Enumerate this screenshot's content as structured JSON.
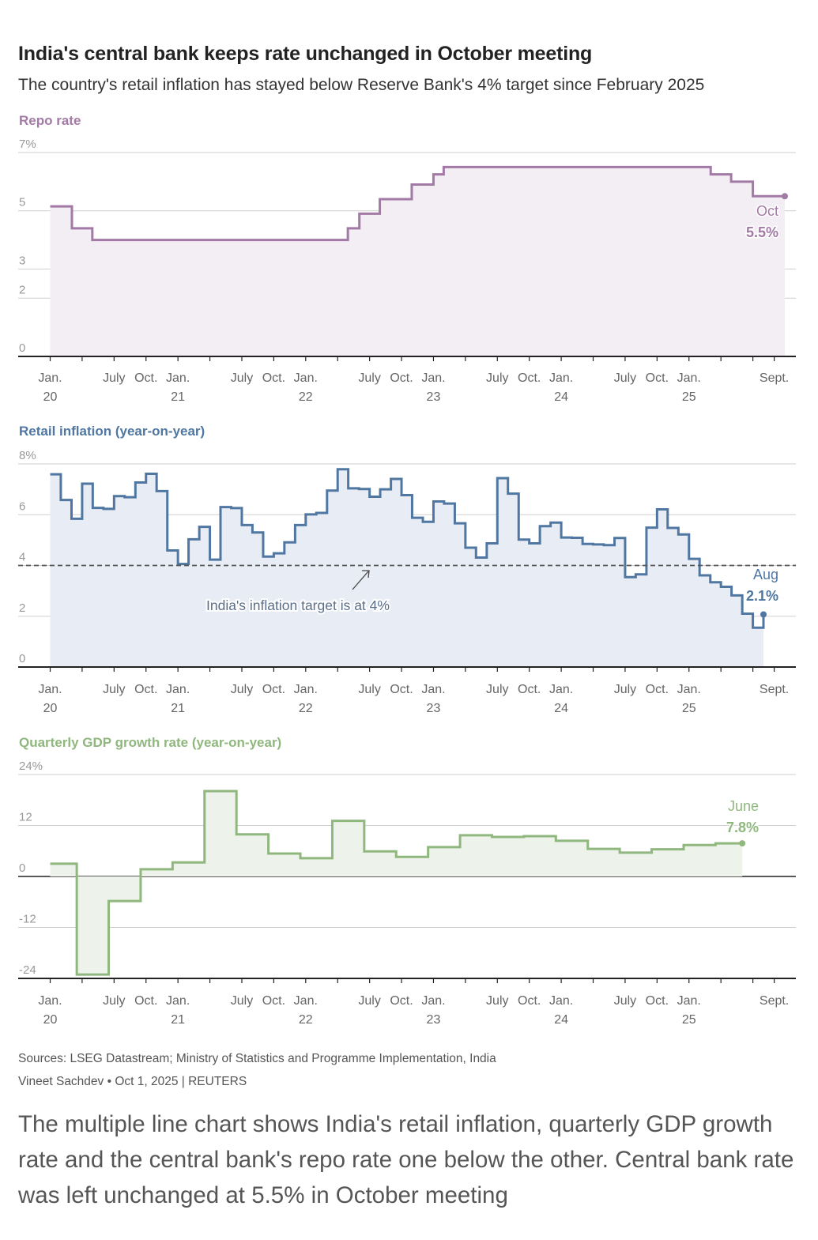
{
  "title": "India's central bank keeps rate unchanged in October meeting",
  "subtitle": "The country's retail inflation has stayed below Reserve Bank's 4% target since February 2025",
  "sources": "Sources: LSEG Datastream; Ministry of Statistics and Programme Implementation, India",
  "byline": "Vineet Sachdev • Oct 1, 2025 | REUTERS",
  "caption": "The multiple line chart shows India's retail inflation, quarterly GDP growth rate and the central bank's repo rate one below the other. Central bank rate was left unchanged at 5.5% in October meeting",
  "x_axis": {
    "ticks": [
      {
        "t": 2020.0,
        "label": "Jan.",
        "year": "20"
      },
      {
        "t": 2020.5,
        "label": "July",
        "year": ""
      },
      {
        "t": 2020.75,
        "label": "Oct.",
        "year": ""
      },
      {
        "t": 2021.0,
        "label": "Jan.",
        "year": "21"
      },
      {
        "t": 2021.5,
        "label": "July",
        "year": ""
      },
      {
        "t": 2021.75,
        "label": "Oct.",
        "year": ""
      },
      {
        "t": 2022.0,
        "label": "Jan.",
        "year": "22"
      },
      {
        "t": 2022.5,
        "label": "July",
        "year": ""
      },
      {
        "t": 2022.75,
        "label": "Oct.",
        "year": ""
      },
      {
        "t": 2023.0,
        "label": "Jan.",
        "year": "23"
      },
      {
        "t": 2023.5,
        "label": "July",
        "year": ""
      },
      {
        "t": 2023.75,
        "label": "Oct.",
        "year": ""
      },
      {
        "t": 2024.0,
        "label": "Jan.",
        "year": "24"
      },
      {
        "t": 2024.5,
        "label": "July",
        "year": ""
      },
      {
        "t": 2024.75,
        "label": "Oct.",
        "year": ""
      },
      {
        "t": 2025.0,
        "label": "Jan.",
        "year": "25"
      },
      {
        "t": 2025.667,
        "label": "Sept.",
        "year": ""
      }
    ],
    "minor_ticks": [
      2020.25,
      2021.25,
      2022.25,
      2023.25,
      2024.25,
      2025.25,
      2025.5
    ]
  },
  "chart_data": [
    {
      "type": "line",
      "style": "step-area",
      "title": "Repo rate",
      "color": "#a27aa5",
      "fill": "#f3edf4",
      "ylim": [
        0,
        7
      ],
      "y_ticks": [
        {
          "v": 7,
          "label": "7%"
        },
        {
          "v": 5,
          "label": "5"
        },
        {
          "v": 3,
          "label": "3"
        },
        {
          "v": 2,
          "label": "2"
        },
        {
          "v": 0,
          "label": "0"
        }
      ],
      "x_end": 2025.75,
      "points": [
        [
          2020.0,
          5.15
        ],
        [
          2020.17,
          4.4
        ],
        [
          2020.33,
          4.0
        ],
        [
          2022.33,
          4.4
        ],
        [
          2022.42,
          4.9
        ],
        [
          2022.58,
          5.4
        ],
        [
          2022.83,
          5.9
        ],
        [
          2023.0,
          6.25
        ],
        [
          2023.08,
          6.5
        ],
        [
          2025.0,
          6.5
        ],
        [
          2025.17,
          6.25
        ],
        [
          2025.33,
          6.0
        ],
        [
          2025.5,
          5.5
        ]
      ],
      "annotation": {
        "label": "Oct",
        "value": "5.5%"
      }
    },
    {
      "type": "line",
      "style": "step-area",
      "title": "Retail inflation (year-on-year)",
      "color": "#4f77a1",
      "fill": "#e8ecf5",
      "ylim": [
        0,
        8
      ],
      "y_ticks": [
        {
          "v": 8,
          "label": "8%"
        },
        {
          "v": 6,
          "label": "6"
        },
        {
          "v": 4,
          "label": "4"
        },
        {
          "v": 2,
          "label": "2"
        },
        {
          "v": 0,
          "label": "0"
        }
      ],
      "target": {
        "value": 4,
        "label": "India's inflation target is at 4%"
      },
      "x_end": 2025.583,
      "points": [
        [
          2020.0,
          7.59
        ],
        [
          2020.083,
          6.58
        ],
        [
          2020.167,
          5.84
        ],
        [
          2020.25,
          7.22
        ],
        [
          2020.333,
          6.27
        ],
        [
          2020.417,
          6.23
        ],
        [
          2020.5,
          6.73
        ],
        [
          2020.583,
          6.69
        ],
        [
          2020.667,
          7.27
        ],
        [
          2020.75,
          7.61
        ],
        [
          2020.833,
          6.93
        ],
        [
          2020.917,
          4.59
        ],
        [
          2021.0,
          4.06
        ],
        [
          2021.083,
          5.03
        ],
        [
          2021.167,
          5.52
        ],
        [
          2021.25,
          4.23
        ],
        [
          2021.333,
          6.3
        ],
        [
          2021.417,
          6.26
        ],
        [
          2021.5,
          5.59
        ],
        [
          2021.583,
          5.3
        ],
        [
          2021.667,
          4.35
        ],
        [
          2021.75,
          4.48
        ],
        [
          2021.833,
          4.91
        ],
        [
          2021.917,
          5.59
        ],
        [
          2022.0,
          6.01
        ],
        [
          2022.083,
          6.07
        ],
        [
          2022.167,
          6.95
        ],
        [
          2022.25,
          7.79
        ],
        [
          2022.333,
          7.04
        ],
        [
          2022.417,
          7.01
        ],
        [
          2022.5,
          6.71
        ],
        [
          2022.583,
          7.0
        ],
        [
          2022.667,
          7.41
        ],
        [
          2022.75,
          6.77
        ],
        [
          2022.833,
          5.88
        ],
        [
          2022.917,
          5.72
        ],
        [
          2023.0,
          6.52
        ],
        [
          2023.083,
          6.44
        ],
        [
          2023.167,
          5.66
        ],
        [
          2023.25,
          4.7
        ],
        [
          2023.333,
          4.31
        ],
        [
          2023.417,
          4.87
        ],
        [
          2023.5,
          7.44
        ],
        [
          2023.583,
          6.83
        ],
        [
          2023.667,
          5.02
        ],
        [
          2023.75,
          4.87
        ],
        [
          2023.833,
          5.55
        ],
        [
          2023.917,
          5.69
        ],
        [
          2024.0,
          5.1
        ],
        [
          2024.083,
          5.09
        ],
        [
          2024.167,
          4.85
        ],
        [
          2024.25,
          4.83
        ],
        [
          2024.333,
          4.8
        ],
        [
          2024.417,
          5.08
        ],
        [
          2024.5,
          3.54
        ],
        [
          2024.583,
          3.65
        ],
        [
          2024.667,
          5.49
        ],
        [
          2024.75,
          6.21
        ],
        [
          2024.833,
          5.48
        ],
        [
          2024.917,
          5.22
        ],
        [
          2025.0,
          4.26
        ],
        [
          2025.083,
          3.61
        ],
        [
          2025.167,
          3.34
        ],
        [
          2025.25,
          3.16
        ],
        [
          2025.333,
          2.82
        ],
        [
          2025.417,
          2.1
        ],
        [
          2025.5,
          1.55
        ],
        [
          2025.583,
          2.07
        ]
      ],
      "annotation": {
        "label": "Aug",
        "value": "2.1%"
      }
    },
    {
      "type": "line",
      "style": "step-area",
      "title": "Quarterly GDP growth rate (year-on-year)",
      "color": "#8fb77e",
      "fill": "#edf3ea",
      "ylim": [
        -24,
        24
      ],
      "y_ticks": [
        {
          "v": 24,
          "label": "24%"
        },
        {
          "v": 12,
          "label": "12"
        },
        {
          "v": 0,
          "label": "0"
        },
        {
          "v": -12,
          "label": "-12"
        },
        {
          "v": -24,
          "label": "-24"
        }
      ],
      "x_end": 2025.417,
      "points": [
        [
          2020.0,
          3.0
        ],
        [
          2020.208,
          -23.1
        ],
        [
          2020.458,
          -5.8
        ],
        [
          2020.708,
          1.7
        ],
        [
          2020.958,
          3.3
        ],
        [
          2021.208,
          20.1
        ],
        [
          2021.458,
          9.9
        ],
        [
          2021.708,
          5.4
        ],
        [
          2021.958,
          4.3
        ],
        [
          2022.208,
          13.1
        ],
        [
          2022.458,
          5.9
        ],
        [
          2022.708,
          4.6
        ],
        [
          2022.958,
          6.9
        ],
        [
          2023.208,
          9.7
        ],
        [
          2023.458,
          9.3
        ],
        [
          2023.708,
          9.5
        ],
        [
          2023.958,
          8.4
        ],
        [
          2024.208,
          6.5
        ],
        [
          2024.458,
          5.6
        ],
        [
          2024.708,
          6.4
        ],
        [
          2024.958,
          7.4
        ],
        [
          2025.208,
          7.8
        ]
      ],
      "annotation": {
        "label": "June",
        "value": "7.8%"
      }
    }
  ]
}
